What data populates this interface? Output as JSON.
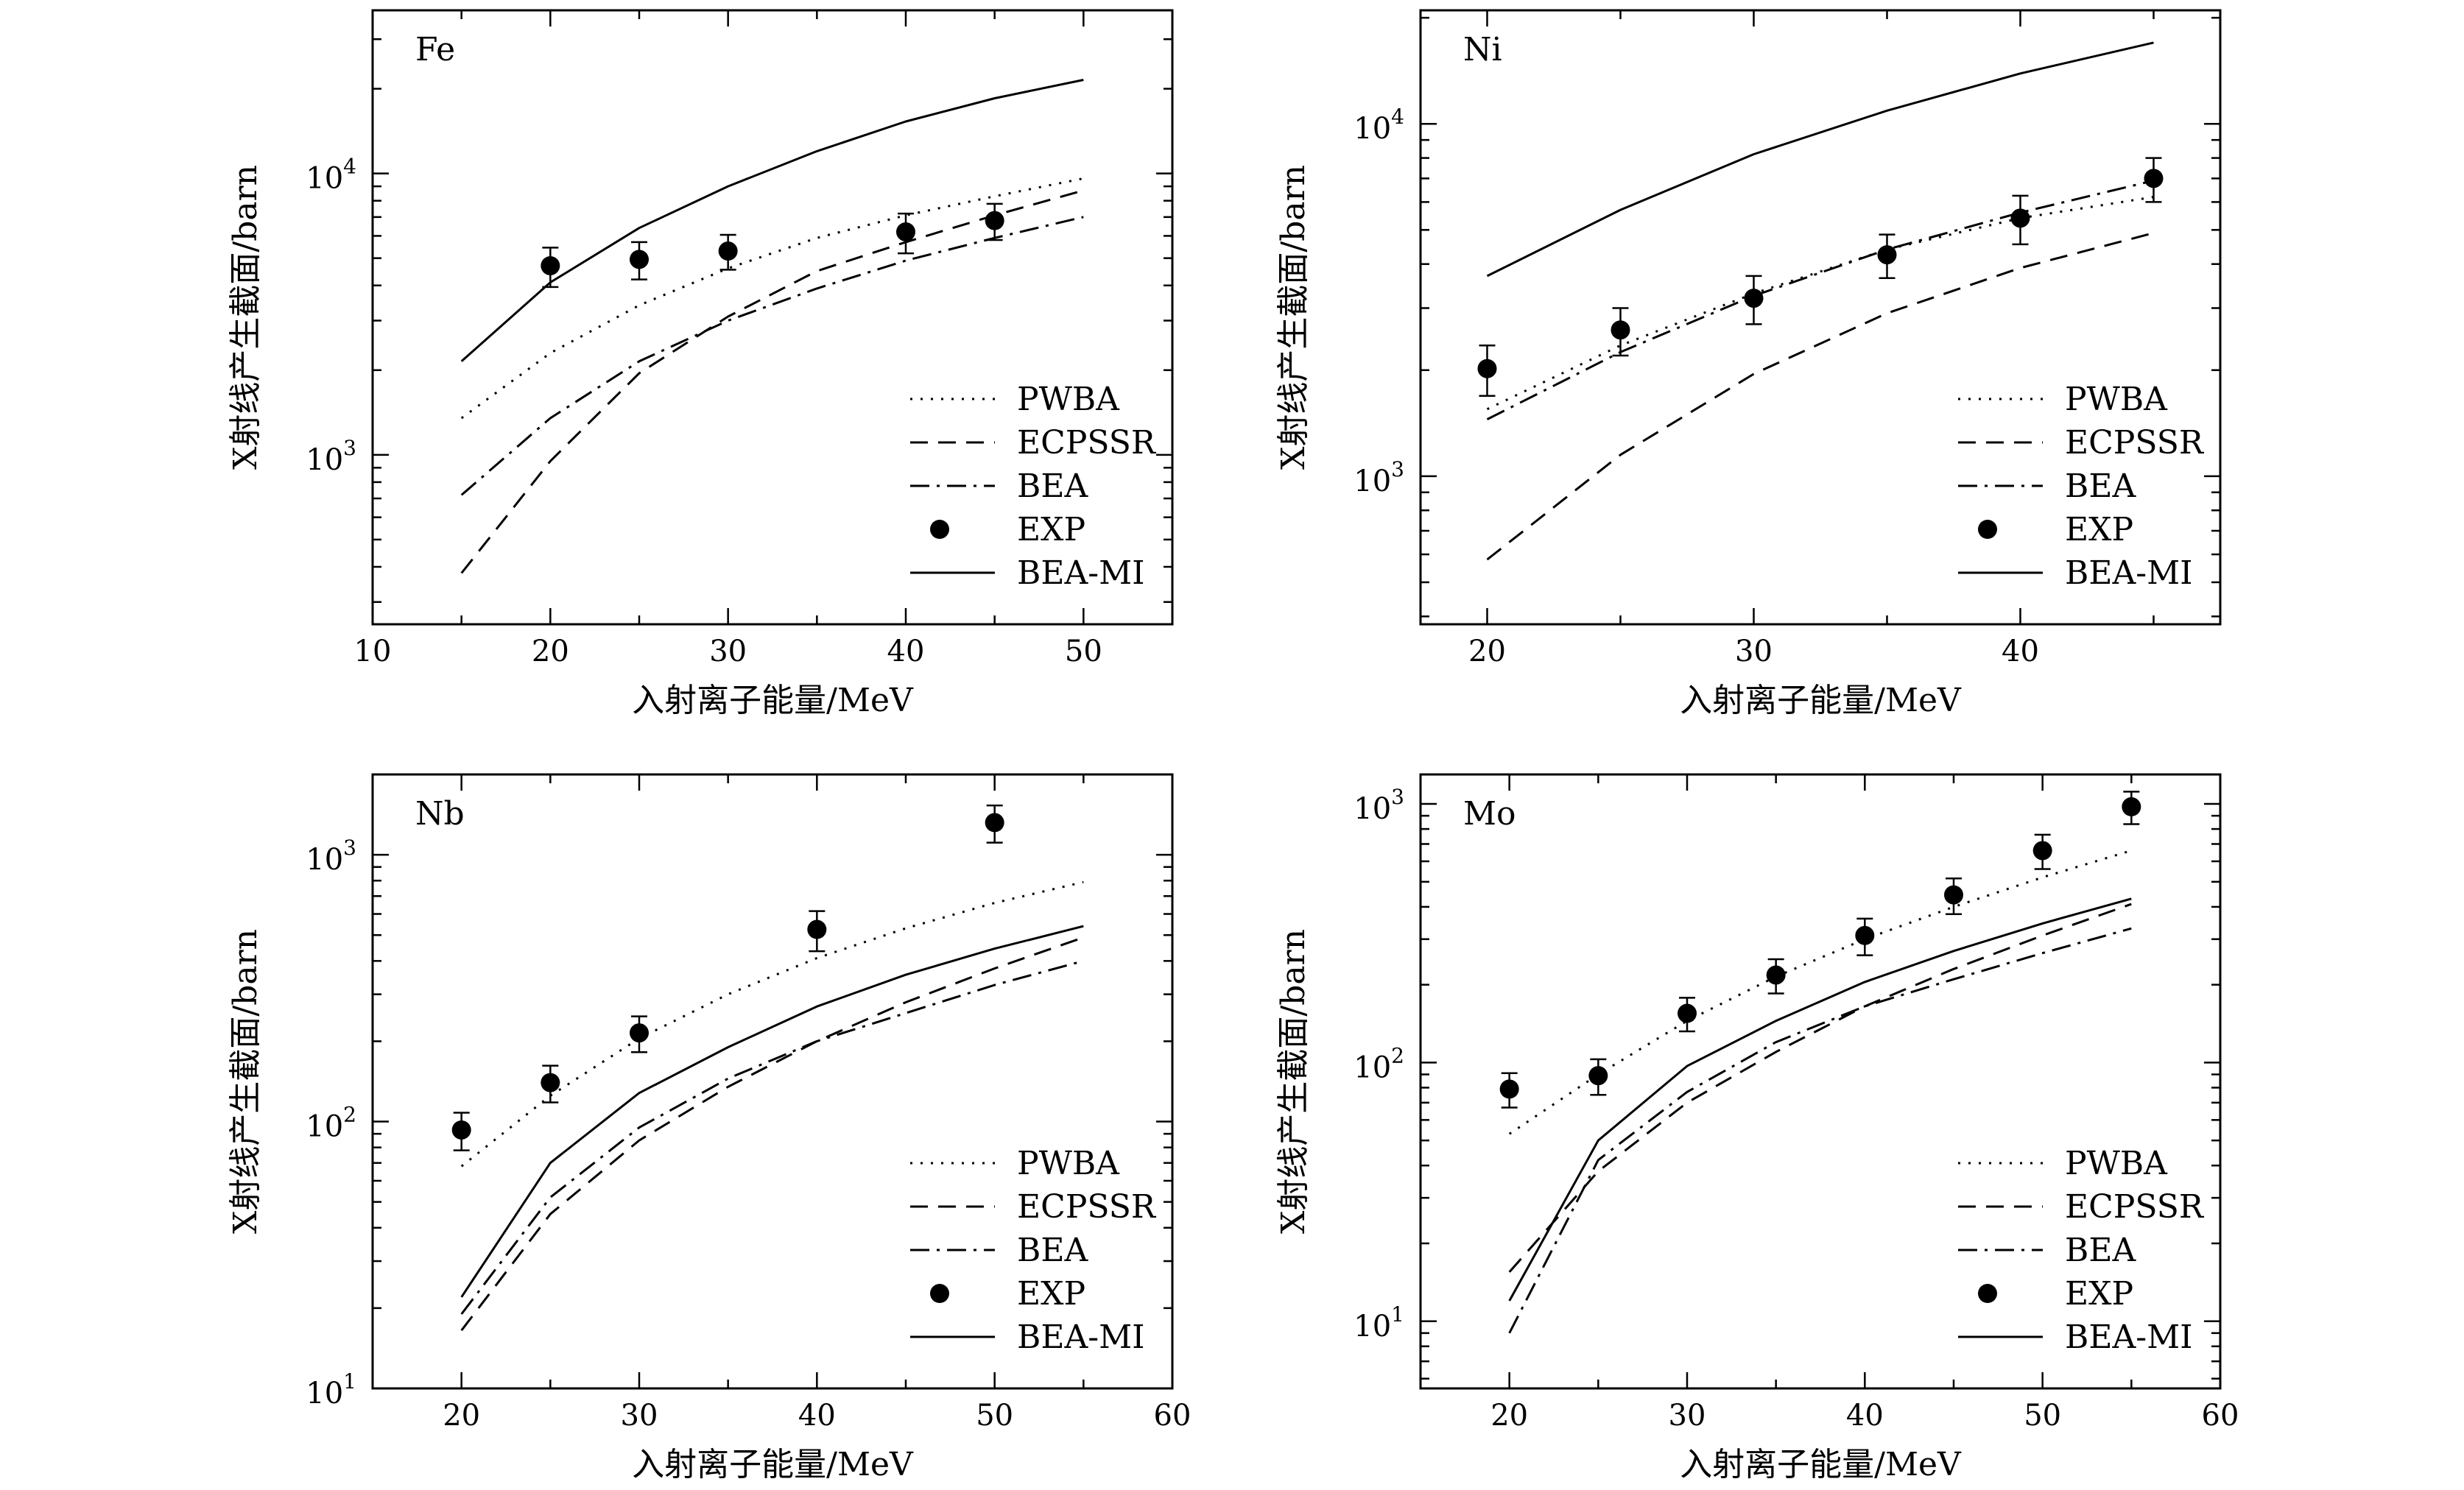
{
  "chart_data": [
    {
      "type": "line",
      "label": "Fe",
      "xlabel": "入射离子能量/MeV",
      "ylabel": "X射线产生截面/barn",
      "xlim": [
        10,
        55
      ],
      "ylim": [
        250,
        38000
      ],
      "yscale": "log",
      "xticks": [
        10,
        20,
        30,
        40,
        50
      ],
      "yticks": [
        {
          "v": 1000,
          "base": "10",
          "exp": "3"
        },
        {
          "v": 10000,
          "base": "10",
          "exp": "4"
        }
      ],
      "legend_position": "bottom-right",
      "series": [
        {
          "name": "PWBA",
          "style": "dotted",
          "x": [
            15,
            20,
            25,
            30,
            35,
            40,
            45,
            50
          ],
          "y": [
            1350,
            2300,
            3400,
            4600,
            5900,
            7100,
            8300,
            9600
          ]
        },
        {
          "name": "ECPSSR",
          "style": "dashed",
          "x": [
            15,
            20,
            25,
            30,
            35,
            40,
            45,
            50
          ],
          "y": [
            380,
            950,
            1950,
            3100,
            4500,
            5700,
            7100,
            8700
          ]
        },
        {
          "name": "BEA",
          "style": "dashdot",
          "x": [
            15,
            20,
            25,
            30,
            35,
            40,
            45,
            50
          ],
          "y": [
            720,
            1350,
            2150,
            3000,
            3900,
            4900,
            5900,
            7000
          ]
        },
        {
          "name": "EXP",
          "style": "points",
          "x": [
            20,
            25,
            30,
            40,
            45
          ],
          "y": [
            4700,
            4950,
            5300,
            6200,
            6800
          ],
          "yerr": [
            750,
            750,
            750,
            1000,
            1000
          ]
        },
        {
          "name": "BEA-MI",
          "style": "solid",
          "x": [
            15,
            20,
            25,
            30,
            35,
            40,
            45,
            50
          ],
          "y": [
            2150,
            4100,
            6400,
            9000,
            12000,
            15300,
            18500,
            21500
          ]
        }
      ]
    },
    {
      "type": "line",
      "label": "Ni",
      "xlabel": "入射离子能量/MeV",
      "ylabel": "X射线产生截面/barn",
      "xlim": [
        17.5,
        47.5
      ],
      "ylim": [
        380,
        21000
      ],
      "yscale": "log",
      "xticks": [
        20,
        30,
        40
      ],
      "yticks": [
        {
          "v": 1000,
          "base": "10",
          "exp": "3"
        },
        {
          "v": 10000,
          "base": "10",
          "exp": "4"
        }
      ],
      "legend_position": "bottom-right",
      "series": [
        {
          "name": "PWBA",
          "style": "dotted",
          "x": [
            20,
            25,
            30,
            35,
            40,
            45
          ],
          "y": [
            1550,
            2350,
            3300,
            4400,
            5400,
            6200
          ]
        },
        {
          "name": "ECPSSR",
          "style": "dashed",
          "x": [
            20,
            25,
            30,
            35,
            40,
            45
          ],
          "y": [
            580,
            1150,
            1950,
            2900,
            3900,
            4900
          ]
        },
        {
          "name": "BEA",
          "style": "dashdot",
          "x": [
            20,
            25,
            30,
            35,
            40,
            45
          ],
          "y": [
            1450,
            2250,
            3250,
            4400,
            5600,
            6900
          ]
        },
        {
          "name": "EXP",
          "style": "points",
          "x": [
            20,
            25,
            30,
            35,
            40,
            45
          ],
          "y": [
            2020,
            2600,
            3200,
            4250,
            5400,
            7000
          ],
          "yerr": [
            330,
            400,
            500,
            600,
            850,
            1000
          ]
        },
        {
          "name": "BEA-MI",
          "style": "solid",
          "x": [
            20,
            25,
            30,
            35,
            40,
            45
          ],
          "y": [
            3700,
            5700,
            8200,
            10900,
            13900,
            17000
          ]
        }
      ]
    },
    {
      "type": "line",
      "label": "Nb",
      "xlabel": "入射离子能量/MeV",
      "ylabel": "X射线产生截面/barn",
      "xlim": [
        15,
        60
      ],
      "ylim": [
        10,
        2000
      ],
      "yscale": "log",
      "xticks": [
        20,
        30,
        40,
        50,
        60
      ],
      "yticks": [
        {
          "v": 10,
          "base": "10",
          "exp": "1"
        },
        {
          "v": 100,
          "base": "10",
          "exp": "2"
        },
        {
          "v": 1000,
          "base": "10",
          "exp": "3"
        }
      ],
      "legend_position": "bottom-right",
      "series": [
        {
          "name": "PWBA",
          "style": "dotted",
          "x": [
            20,
            25,
            30,
            35,
            40,
            45,
            50,
            55
          ],
          "y": [
            68,
            125,
            205,
            300,
            410,
            530,
            660,
            790
          ]
        },
        {
          "name": "ECPSSR",
          "style": "dashed",
          "x": [
            20,
            25,
            30,
            35,
            40,
            45,
            50,
            55
          ],
          "y": [
            16.5,
            45,
            85,
            135,
            200,
            280,
            375,
            490
          ]
        },
        {
          "name": "BEA",
          "style": "dashdot",
          "x": [
            20,
            25,
            30,
            35,
            40,
            45,
            50,
            55
          ],
          "y": [
            19,
            52,
            95,
            145,
            200,
            255,
            325,
            400
          ]
        },
        {
          "name": "EXP",
          "style": "points",
          "x": [
            20,
            25,
            30,
            40,
            50
          ],
          "y": [
            93,
            140,
            215,
            525,
            1320
          ],
          "yerr": [
            15,
            22,
            33,
            90,
            210
          ]
        },
        {
          "name": "BEA-MI",
          "style": "solid",
          "x": [
            20,
            25,
            30,
            35,
            40,
            45,
            50,
            55
          ],
          "y": [
            22,
            70,
            128,
            190,
            270,
            355,
            445,
            540
          ]
        }
      ]
    },
    {
      "type": "line",
      "label": "Mo",
      "xlabel": "入射离子能量/MeV",
      "ylabel": "X射线产生截面/barn",
      "xlim": [
        15,
        60
      ],
      "ylim": [
        5.5,
        1300
      ],
      "yscale": "log",
      "xticks": [
        20,
        30,
        40,
        50,
        60
      ],
      "yticks": [
        {
          "v": 10,
          "base": "10",
          "exp": "1"
        },
        {
          "v": 100,
          "base": "10",
          "exp": "2"
        },
        {
          "v": 1000,
          "base": "10",
          "exp": "3"
        }
      ],
      "legend_position": "bottom-right",
      "series": [
        {
          "name": "PWBA",
          "style": "dotted",
          "x": [
            20,
            25,
            30,
            35,
            40,
            45,
            50,
            55
          ],
          "y": [
            53,
            90,
            145,
            215,
            300,
            400,
            520,
            660
          ]
        },
        {
          "name": "ECPSSR",
          "style": "dashed",
          "x": [
            20,
            25,
            30,
            35,
            40,
            45,
            50,
            55
          ],
          "y": [
            15.5,
            38,
            70,
            110,
            165,
            230,
            310,
            410
          ]
        },
        {
          "name": "BEA",
          "style": "dashdot",
          "x": [
            20,
            25,
            30,
            35,
            40,
            45,
            50,
            55
          ],
          "y": [
            9,
            42,
            77,
            120,
            165,
            210,
            265,
            330
          ]
        },
        {
          "name": "EXP",
          "style": "points",
          "x": [
            20,
            25,
            30,
            35,
            40,
            45,
            50,
            55
          ],
          "y": [
            79,
            89,
            155,
            218,
            310,
            445,
            660,
            975
          ],
          "yerr": [
            12,
            14,
            23,
            33,
            50,
            70,
            100,
            140
          ]
        },
        {
          "name": "BEA-MI",
          "style": "solid",
          "x": [
            20,
            25,
            30,
            35,
            40,
            45,
            50,
            55
          ],
          "y": [
            12,
            50,
            97,
            145,
            205,
            270,
            345,
            430
          ]
        }
      ]
    }
  ]
}
